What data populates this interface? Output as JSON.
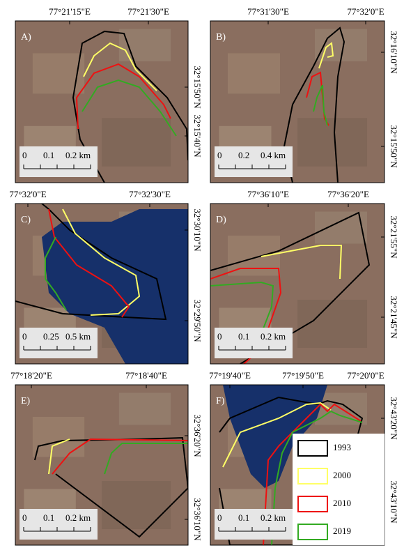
{
  "panels": [
    {
      "label": "A)",
      "top_labels": [
        "77°21'15\"E",
        "77°21'30\"E"
      ],
      "right_labels": [
        "32°15'50\"N",
        "32°15'40\"N"
      ],
      "scale_labels": [
        "0",
        "0.1",
        "0.2 km"
      ]
    },
    {
      "label": "B)",
      "top_labels": [
        "77°31'30\"E",
        "77°32'0\"E"
      ],
      "right_labels": [
        "32°16'10\"N",
        "32°15'50\"N"
      ],
      "scale_labels": [
        "0",
        "0.2",
        "0.4 km"
      ]
    },
    {
      "label": "C)",
      "top_labels": [
        "77°32'0\"E",
        "77°32'30\"E"
      ],
      "right_labels": [
        "32°30'10\"N",
        "32°29'50\"N"
      ],
      "scale_labels": [
        "0",
        "0.25",
        "0.5 km"
      ]
    },
    {
      "label": "D)",
      "top_labels": [
        "77°36'10\"E",
        "77°36'20\"E"
      ],
      "right_labels": [
        "32°21'55\"N",
        "32°21'45\"N"
      ],
      "scale_labels": [
        "0",
        "0.1",
        "0.2 km"
      ]
    },
    {
      "label": "E)",
      "top_labels": [
        "77°18'20\"E",
        "77°18'40\"E"
      ],
      "right_labels": [
        "32°36'20\"N",
        "32°36'10\"N"
      ],
      "scale_labels": [
        "0",
        "0.1",
        "0.2 km"
      ]
    },
    {
      "label": "F)",
      "top_labels": [
        "77°19'40\"E",
        "77°19'50\"E",
        "77°20'0\"E"
      ],
      "right_labels": [
        "32°43'20\"N",
        "32°43'10\"N"
      ],
      "scale_labels": [
        "0",
        "0.1",
        "0.2 km"
      ]
    }
  ],
  "legend": [
    {
      "label": "1993",
      "color": "#000000"
    },
    {
      "label": "2000",
      "color": "#ffff66"
    },
    {
      "label": "2010",
      "color": "#ee1111"
    },
    {
      "label": "2019",
      "color": "#33aa22"
    }
  ]
}
